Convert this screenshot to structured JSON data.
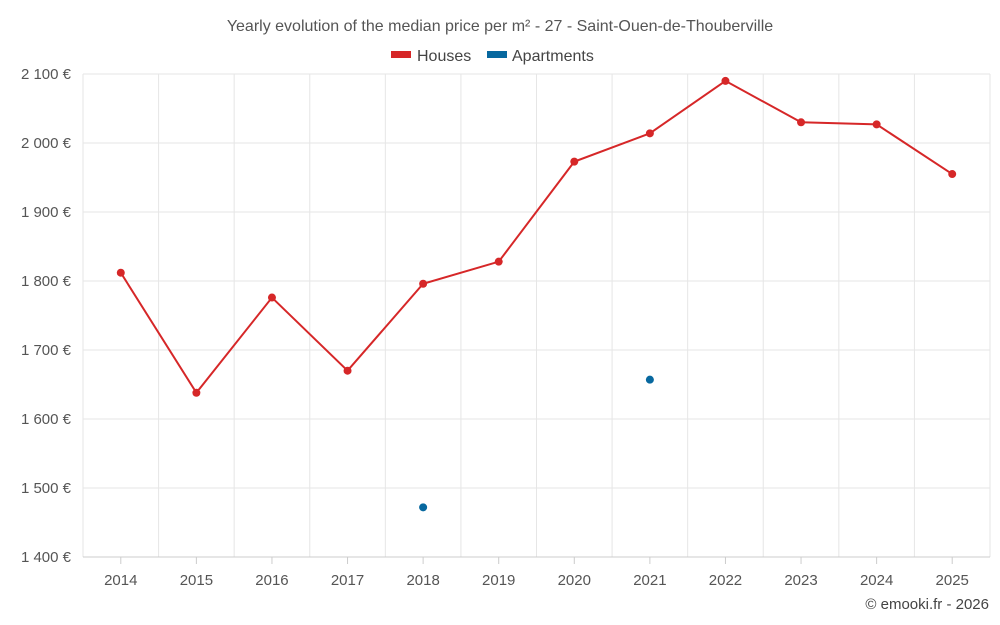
{
  "chart_data": {
    "type": "line",
    "title": "Yearly evolution of the median price per m² - 27 - Saint-Ouen-de-Thouberville",
    "categories": [
      "2014",
      "2015",
      "2016",
      "2017",
      "2018",
      "2019",
      "2020",
      "2021",
      "2022",
      "2023",
      "2024",
      "2025"
    ],
    "series": [
      {
        "name": "Houses",
        "color": "#d62728",
        "values": [
          1812,
          1638,
          1776,
          1670,
          1796,
          1828,
          1973,
          2014,
          2090,
          2030,
          2027,
          1955
        ]
      },
      {
        "name": "Apartments",
        "color": "#07689f",
        "values": [
          null,
          null,
          null,
          null,
          1472,
          null,
          null,
          1657,
          null,
          null,
          null,
          null
        ]
      }
    ],
    "ylim": [
      1400,
      2100
    ],
    "yticks": [
      1400,
      1500,
      1600,
      1700,
      1800,
      1900,
      2000,
      2100
    ],
    "ytick_labels": [
      "1 400 €",
      "1 500 €",
      "1 600 €",
      "1 700 €",
      "1 800 €",
      "1 900 €",
      "2 000 €",
      "2 100 €"
    ],
    "xlabel": "",
    "ylabel": "",
    "grid": true,
    "legend_position": "top-center"
  },
  "credit": "© emooki.fr - 2026"
}
